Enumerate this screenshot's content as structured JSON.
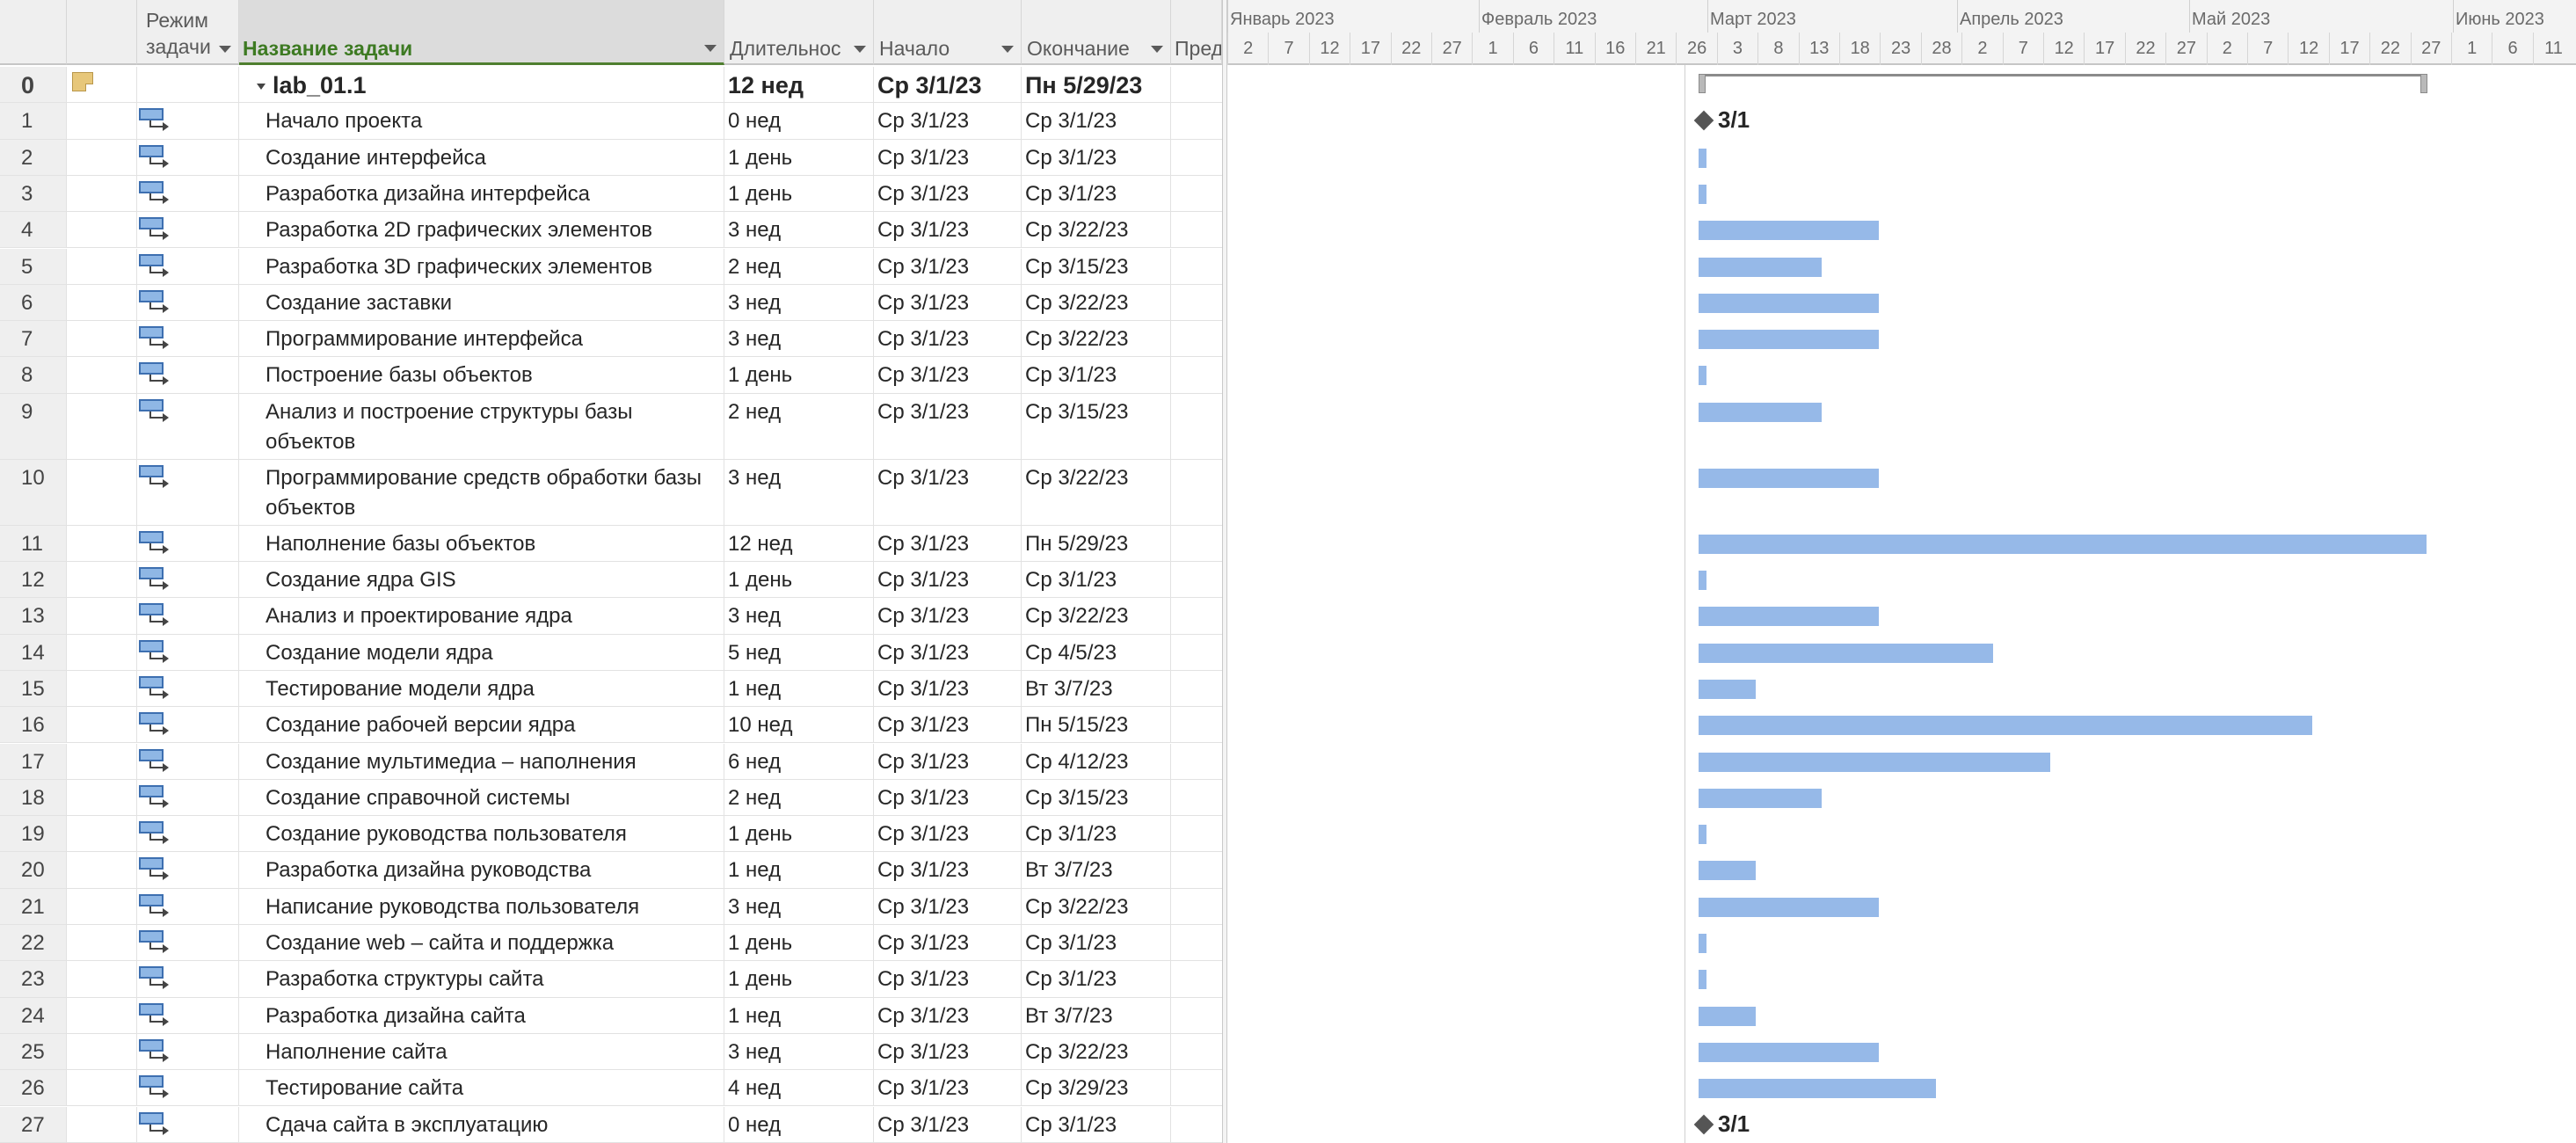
{
  "columns": {
    "mode": "Режим задачи",
    "name": "Название задачи",
    "duration": "Длительнос",
    "start": "Начало",
    "finish": "Окончание",
    "pred": "Пред"
  },
  "timeline": {
    "months": [
      "Январь 2023",
      "Февраль 2023",
      "Март 2023",
      "Апрель 2023",
      "Май 2023",
      "Июнь 2023"
    ],
    "days": [
      "2",
      "7",
      "12",
      "17",
      "22",
      "27",
      "1",
      "6",
      "11",
      "16",
      "21",
      "26",
      "3",
      "8",
      "13",
      "18",
      "23",
      "28",
      "2",
      "7",
      "12",
      "17",
      "22",
      "27",
      "2",
      "7",
      "12",
      "17",
      "22",
      "27",
      "1",
      "6",
      "11"
    ]
  },
  "tasks": [
    {
      "id": "0",
      "name": "lab_01.1",
      "duration": "12 нед",
      "start": "Ср 3/1/23",
      "finish": "Пн 5/29/23",
      "summary": true,
      "days": 89
    },
    {
      "id": "1",
      "name": "Начало проекта",
      "duration": "0 нед",
      "start": "Ср 3/1/23",
      "finish": "Ср 3/1/23",
      "milestone": true,
      "label": "3/1"
    },
    {
      "id": "2",
      "name": "Создание интерфейса",
      "duration": "1 день",
      "start": "Ср 3/1/23",
      "finish": "Ср 3/1/23",
      "days": 1
    },
    {
      "id": "3",
      "name": "Разработка дизайна интерфейса",
      "duration": "1 день",
      "start": "Ср 3/1/23",
      "finish": "Ср 3/1/23",
      "days": 1
    },
    {
      "id": "4",
      "name": "Разработка 2D графических элементов",
      "duration": "3 нед",
      "start": "Ср 3/1/23",
      "finish": "Ср 3/22/23",
      "days": 22
    },
    {
      "id": "5",
      "name": "Разработка 3D графических элементов",
      "duration": "2 нед",
      "start": "Ср 3/1/23",
      "finish": "Ср 3/15/23",
      "days": 15
    },
    {
      "id": "6",
      "name": "Создание заставки",
      "duration": "3 нед",
      "start": "Ср 3/1/23",
      "finish": "Ср 3/22/23",
      "days": 22
    },
    {
      "id": "7",
      "name": "Программирование интерфейса",
      "duration": "3 нед",
      "start": "Ср 3/1/23",
      "finish": "Ср 3/22/23",
      "days": 22
    },
    {
      "id": "8",
      "name": "Построение базы объектов",
      "duration": "1 день",
      "start": "Ср 3/1/23",
      "finish": "Ср 3/1/23",
      "days": 1
    },
    {
      "id": "9",
      "name": "Анализ и построение структуры базы объектов",
      "duration": "2 нед",
      "start": "Ср 3/1/23",
      "finish": "Ср 3/15/23",
      "days": 15,
      "tall": true
    },
    {
      "id": "10",
      "name": "Программирование средств обработки базы объектов",
      "duration": "3 нед",
      "start": "Ср 3/1/23",
      "finish": "Ср 3/22/23",
      "days": 22,
      "tall": true
    },
    {
      "id": "11",
      "name": "Наполнение базы объектов",
      "duration": "12 нед",
      "start": "Ср 3/1/23",
      "finish": "Пн 5/29/23",
      "days": 89
    },
    {
      "id": "12",
      "name": "Создание ядра GIS",
      "duration": "1 день",
      "start": "Ср 3/1/23",
      "finish": "Ср 3/1/23",
      "days": 1
    },
    {
      "id": "13",
      "name": "Анализ и проектирование ядра",
      "duration": "3 нед",
      "start": "Ср 3/1/23",
      "finish": "Ср 3/22/23",
      "days": 22
    },
    {
      "id": "14",
      "name": "Создание модели ядра",
      "duration": "5 нед",
      "start": "Ср 3/1/23",
      "finish": "Ср 4/5/23",
      "days": 36
    },
    {
      "id": "15",
      "name": "Тестирование модели ядра",
      "duration": "1 нед",
      "start": "Ср 3/1/23",
      "finish": "Вт 3/7/23",
      "days": 7
    },
    {
      "id": "16",
      "name": "Создание рабочей версии ядра",
      "duration": "10 нед",
      "start": "Ср 3/1/23",
      "finish": "Пн 5/15/23",
      "days": 75
    },
    {
      "id": "17",
      "name": "Создание мультимедиа – наполнения",
      "duration": "6 нед",
      "start": "Ср 3/1/23",
      "finish": "Ср 4/12/23",
      "days": 43
    },
    {
      "id": "18",
      "name": "Создание справочной системы",
      "duration": "2 нед",
      "start": "Ср 3/1/23",
      "finish": "Ср 3/15/23",
      "days": 15
    },
    {
      "id": "19",
      "name": "Создание руководства пользователя",
      "duration": "1 день",
      "start": "Ср 3/1/23",
      "finish": "Ср 3/1/23",
      "days": 1
    },
    {
      "id": "20",
      "name": "Разработка дизайна руководства",
      "duration": "1 нед",
      "start": "Ср 3/1/23",
      "finish": "Вт 3/7/23",
      "days": 7
    },
    {
      "id": "21",
      "name": "Написание руководства пользователя",
      "duration": "3 нед",
      "start": "Ср 3/1/23",
      "finish": "Ср 3/22/23",
      "days": 22
    },
    {
      "id": "22",
      "name": "Создание web – сайта и поддержка",
      "duration": "1 день",
      "start": "Ср 3/1/23",
      "finish": "Ср 3/1/23",
      "days": 1
    },
    {
      "id": "23",
      "name": "Разработка структуры сайта",
      "duration": "1 день",
      "start": "Ср 3/1/23",
      "finish": "Ср 3/1/23",
      "days": 1
    },
    {
      "id": "24",
      "name": "Разработка дизайна сайта",
      "duration": "1 нед",
      "start": "Ср 3/1/23",
      "finish": "Вт 3/7/23",
      "days": 7
    },
    {
      "id": "25",
      "name": "Наполнение сайта",
      "duration": "3 нед",
      "start": "Ср 3/1/23",
      "finish": "Ср 3/22/23",
      "days": 22
    },
    {
      "id": "26",
      "name": "Тестирование сайта",
      "duration": "4 нед",
      "start": "Ср 3/1/23",
      "finish": "Ср 3/29/23",
      "days": 29
    },
    {
      "id": "27",
      "name": "Сдача сайта в эксплуатацию",
      "duration": "0 нед",
      "start": "Ср 3/1/23",
      "finish": "Ср 3/1/23",
      "milestone": true,
      "label": "3/1"
    }
  ]
}
